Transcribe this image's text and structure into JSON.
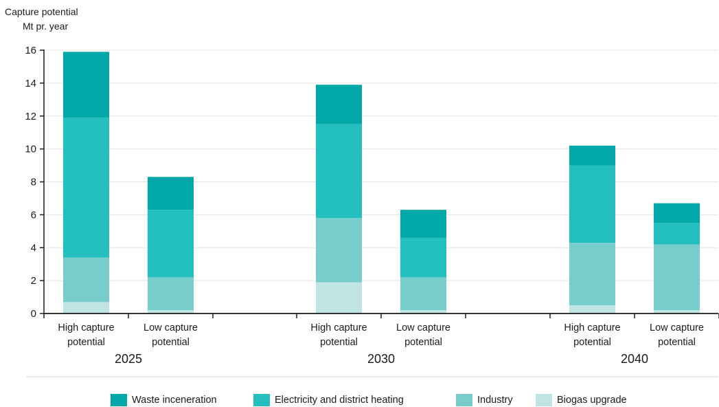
{
  "chart_data": {
    "type": "bar",
    "stacked": true,
    "ylabel_lines": [
      "Capture potential",
      "Mt pr. year"
    ],
    "ylim": [
      0,
      16
    ],
    "yticks": [
      0,
      2,
      4,
      6,
      8,
      10,
      12,
      14,
      16
    ],
    "grid": true,
    "legend_position": "bottom",
    "groups": [
      {
        "label": "2025",
        "bars": [
          {
            "label_lines": [
              "High capture",
              "potential"
            ],
            "values": [
              0.7,
              2.7,
              8.5,
              4.0
            ]
          },
          {
            "label_lines": [
              "Low capture",
              "potential"
            ],
            "values": [
              0.2,
              2.0,
              4.1,
              2.0
            ]
          }
        ]
      },
      {
        "label": "2030",
        "bars": [
          {
            "label_lines": [
              "High capture",
              "potential"
            ],
            "values": [
              1.9,
              3.9,
              5.7,
              2.4
            ]
          },
          {
            "label_lines": [
              "Low capture",
              "potential"
            ],
            "values": [
              0.2,
              2.0,
              2.4,
              1.7
            ]
          }
        ]
      },
      {
        "label": "2040",
        "bars": [
          {
            "label_lines": [
              "High capture",
              "potential"
            ],
            "values": [
              0.5,
              3.8,
              4.7,
              1.2
            ]
          },
          {
            "label_lines": [
              "Low capture",
              "potential"
            ],
            "values": [
              0.2,
              4.0,
              1.3,
              1.2
            ]
          }
        ]
      }
    ],
    "series": [
      {
        "name": "Biogas upgrade",
        "color": "#bfe4e3"
      },
      {
        "name": "Industry",
        "color": "#77cdcc"
      },
      {
        "name": "Electricity and district heating",
        "color": "#23bfbe"
      },
      {
        "name": "Waste inceneration",
        "color": "#00a8a9"
      }
    ],
    "legend_order": [
      3,
      2,
      1,
      0
    ]
  }
}
